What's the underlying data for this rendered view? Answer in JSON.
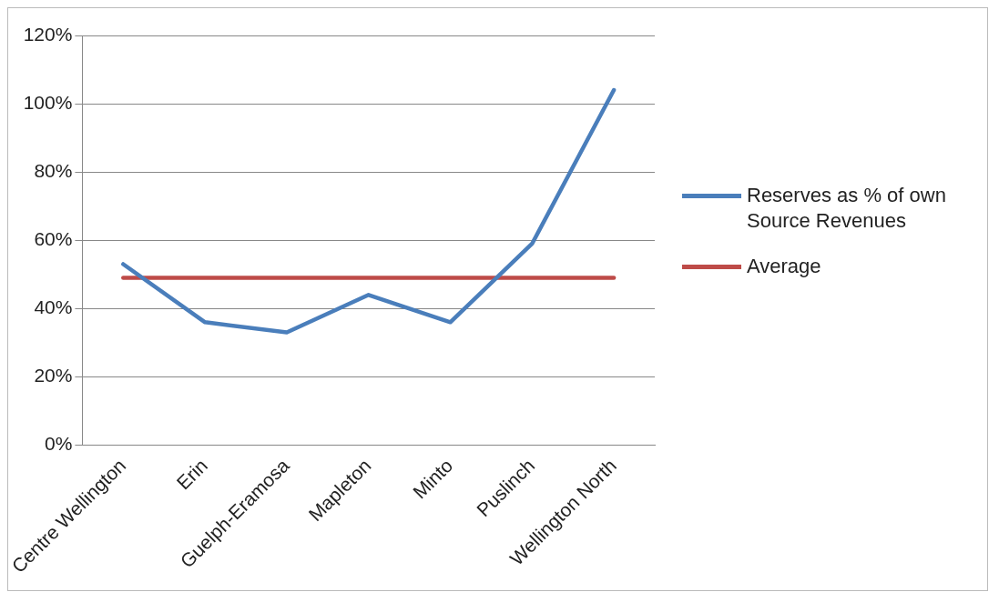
{
  "chart_data": {
    "type": "line",
    "categories": [
      "Centre Wellington",
      "Erin",
      "Guelph-Eramosa",
      "Mapleton",
      "Minto",
      "Puslinch",
      "Wellington North"
    ],
    "series": [
      {
        "name": "Reserves as % of own Source Revenues",
        "color": "#4a7ebb",
        "values": [
          53,
          36,
          33,
          44,
          36,
          59,
          104
        ]
      },
      {
        "name": "Average",
        "color": "#be4b48",
        "values": [
          49,
          49,
          49,
          49,
          49,
          49,
          49
        ]
      }
    ],
    "ylim": [
      0,
      120
    ],
    "yticks": [
      {
        "value": 0,
        "label": "0%"
      },
      {
        "value": 20,
        "label": "20%"
      },
      {
        "value": 40,
        "label": "40%"
      },
      {
        "value": 60,
        "label": "60%"
      },
      {
        "value": 80,
        "label": "80%"
      },
      {
        "value": 100,
        "label": "100%"
      },
      {
        "value": 120,
        "label": "120%"
      }
    ],
    "grid": "y",
    "legend": "right",
    "marker": "none",
    "line_style": "solid"
  }
}
